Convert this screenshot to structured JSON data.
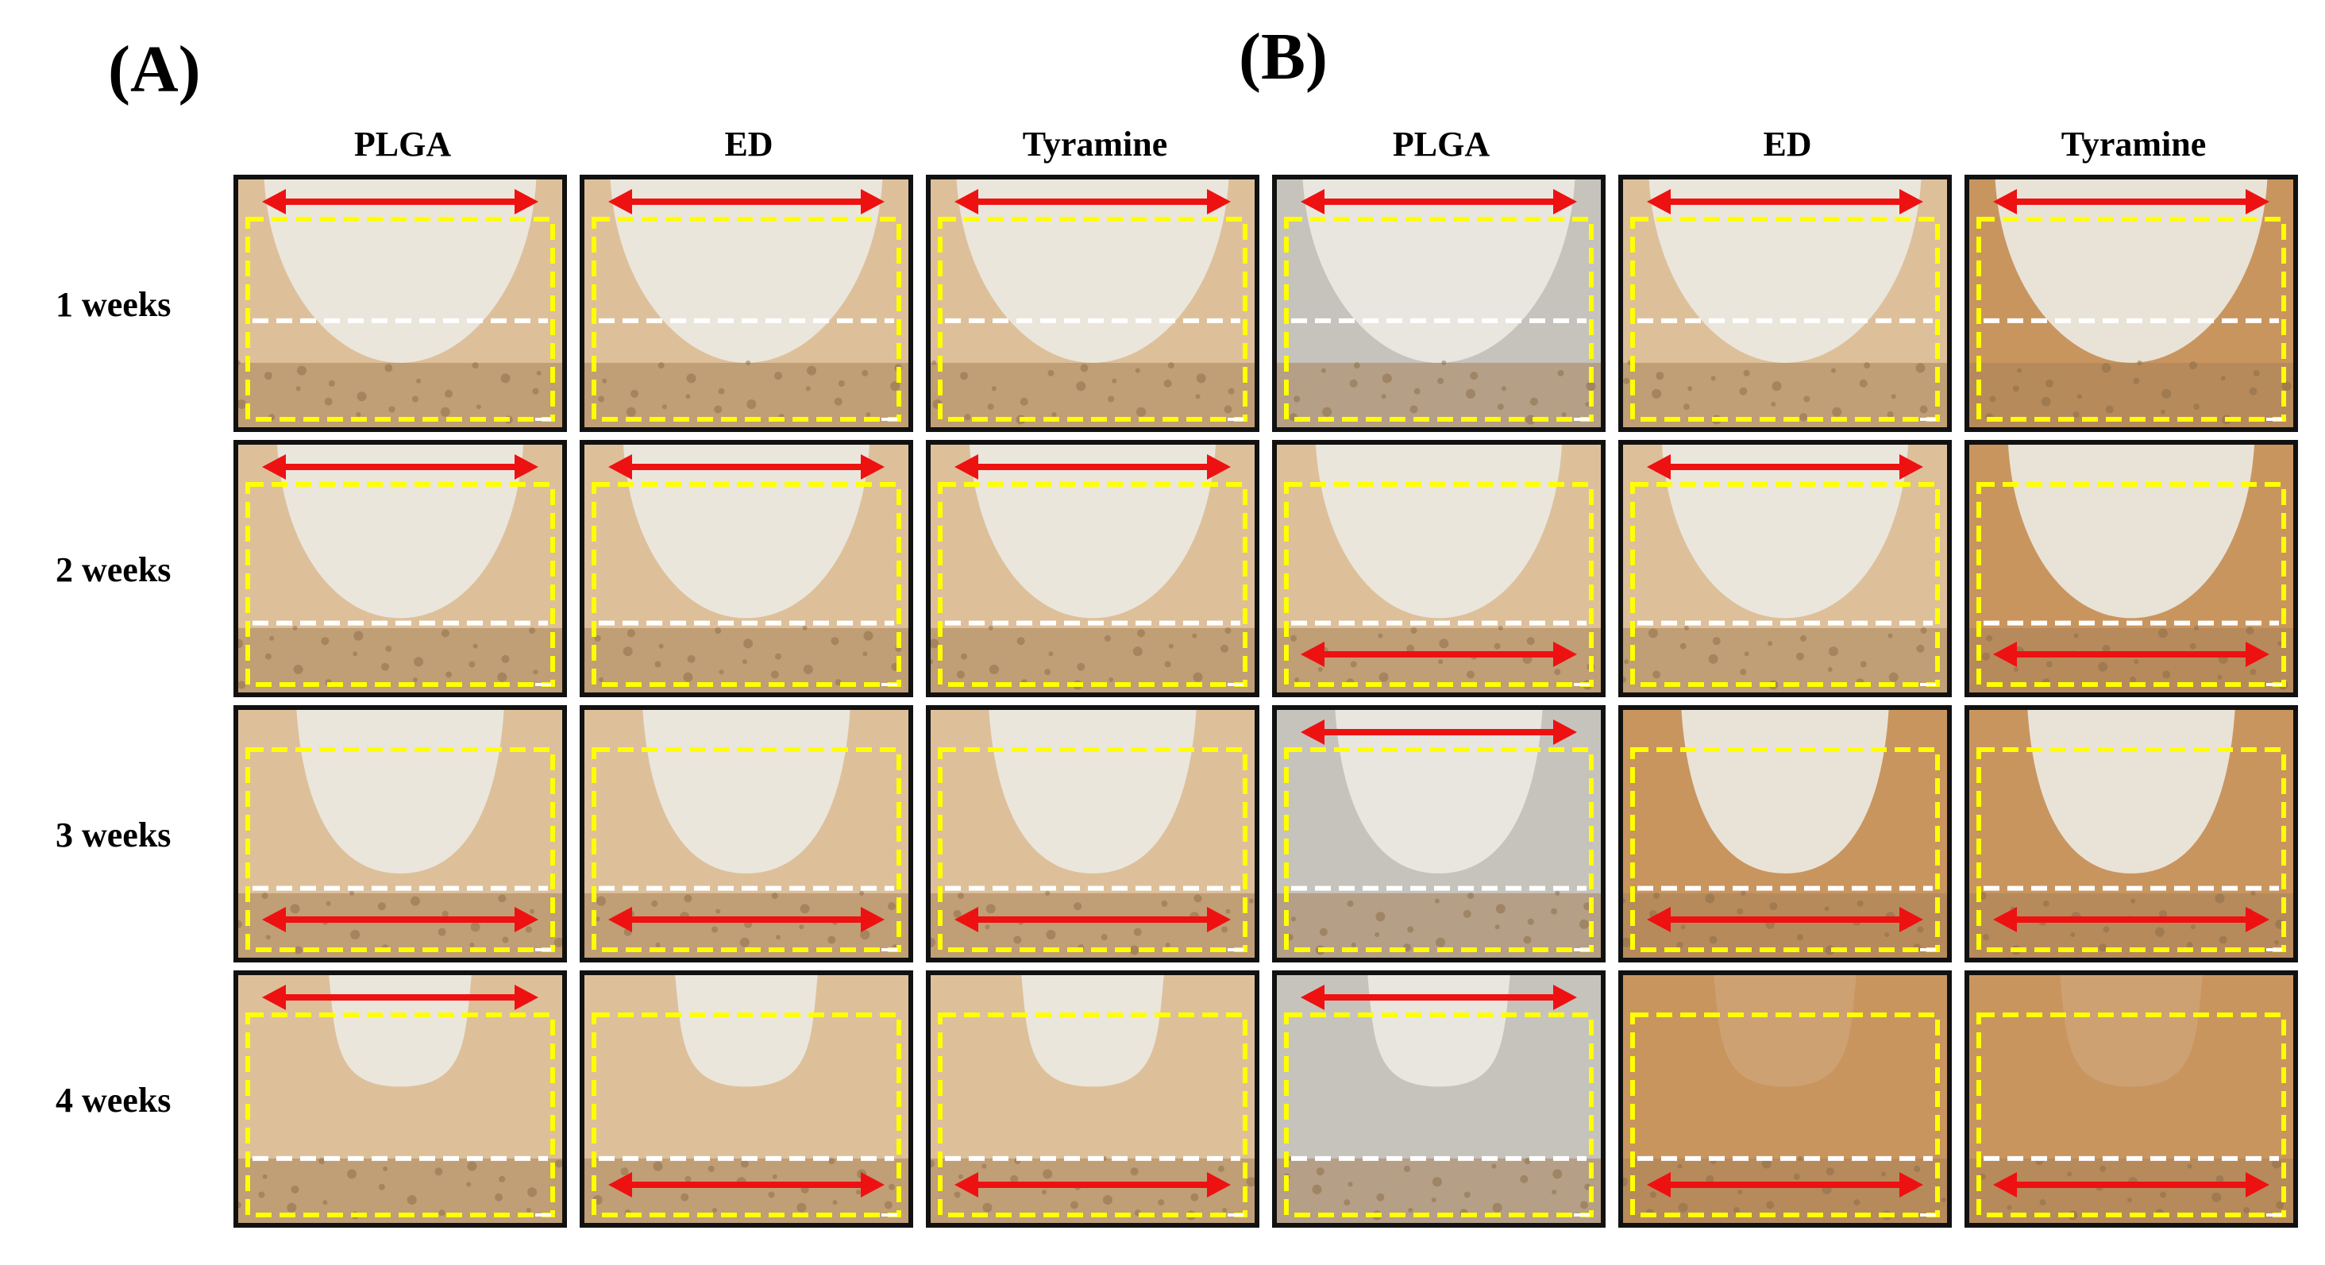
{
  "figure": {
    "panels": [
      {
        "label": "(A)",
        "columns": [
          "PLGA",
          "ED",
          "Tyramine"
        ]
      },
      {
        "label": "(B)",
        "columns": [
          "PLGA",
          "ED",
          "Tyramine"
        ]
      }
    ],
    "rows": [
      "1 weeks",
      "2 weeks",
      "3 weeks",
      "4 weeks"
    ]
  },
  "colors": {
    "tissue_brown": "#c9955f",
    "tissue_light": "#ddc09a",
    "defect_white": "#ece9e2",
    "bone_dark": "#a8815a",
    "arrow_red": "#ee1111",
    "box_yellow": "#ffff00",
    "line_white": "#ffffff",
    "frame_black": "#111111",
    "stain_blue": "#3a55b5"
  },
  "cells": [
    [
      {
        "panel": "A",
        "column": "PLGA",
        "row": "1 weeks",
        "arrow": "top",
        "stain": "light"
      },
      {
        "panel": "A",
        "column": "ED",
        "row": "1 weeks",
        "arrow": "top",
        "stain": "light"
      },
      {
        "panel": "A",
        "column": "Tyramine",
        "row": "1 weeks",
        "arrow": "top",
        "stain": "light"
      },
      {
        "panel": "B",
        "column": "PLGA",
        "row": "1 weeks",
        "arrow": "top",
        "stain": "grey"
      },
      {
        "panel": "B",
        "column": "ED",
        "row": "1 weeks",
        "arrow": "top",
        "stain": "light"
      },
      {
        "panel": "B",
        "column": "Tyramine",
        "row": "1 weeks",
        "arrow": "top",
        "stain": "brown"
      }
    ],
    [
      {
        "panel": "A",
        "column": "PLGA",
        "row": "2 weeks",
        "arrow": "top",
        "stain": "light"
      },
      {
        "panel": "A",
        "column": "ED",
        "row": "2 weeks",
        "arrow": "top",
        "stain": "light"
      },
      {
        "panel": "A",
        "column": "Tyramine",
        "row": "2 weeks",
        "arrow": "top",
        "stain": "light"
      },
      {
        "panel": "B",
        "column": "PLGA",
        "row": "2 weeks",
        "arrow": "bottom",
        "stain": "light"
      },
      {
        "panel": "B",
        "column": "ED",
        "row": "2 weeks",
        "arrow": "top",
        "stain": "light"
      },
      {
        "panel": "B",
        "column": "Tyramine",
        "row": "2 weeks",
        "arrow": "bottom",
        "stain": "brown"
      }
    ],
    [
      {
        "panel": "A",
        "column": "PLGA",
        "row": "3 weeks",
        "arrow": "bottom",
        "stain": "light"
      },
      {
        "panel": "A",
        "column": "ED",
        "row": "3 weeks",
        "arrow": "bottom",
        "stain": "light"
      },
      {
        "panel": "A",
        "column": "Tyramine",
        "row": "3 weeks",
        "arrow": "bottom",
        "stain": "light"
      },
      {
        "panel": "B",
        "column": "PLGA",
        "row": "3 weeks",
        "arrow": "top",
        "stain": "grey"
      },
      {
        "panel": "B",
        "column": "ED",
        "row": "3 weeks",
        "arrow": "bottom",
        "stain": "brown"
      },
      {
        "panel": "B",
        "column": "Tyramine",
        "row": "3 weeks",
        "arrow": "bottom",
        "stain": "brown"
      }
    ],
    [
      {
        "panel": "A",
        "column": "PLGA",
        "row": "4 weeks",
        "arrow": "top",
        "stain": "light"
      },
      {
        "panel": "A",
        "column": "ED",
        "row": "4 weeks",
        "arrow": "bottom",
        "stain": "light"
      },
      {
        "panel": "A",
        "column": "Tyramine",
        "row": "4 weeks",
        "arrow": "bottom",
        "stain": "light"
      },
      {
        "panel": "B",
        "column": "PLGA",
        "row": "4 weeks",
        "arrow": "top",
        "stain": "grey"
      },
      {
        "panel": "B",
        "column": "ED",
        "row": "4 weeks",
        "arrow": "bottom",
        "stain": "brown"
      },
      {
        "panel": "B",
        "column": "Tyramine",
        "row": "4 weeks",
        "arrow": "bottom",
        "stain": "brown"
      }
    ]
  ]
}
